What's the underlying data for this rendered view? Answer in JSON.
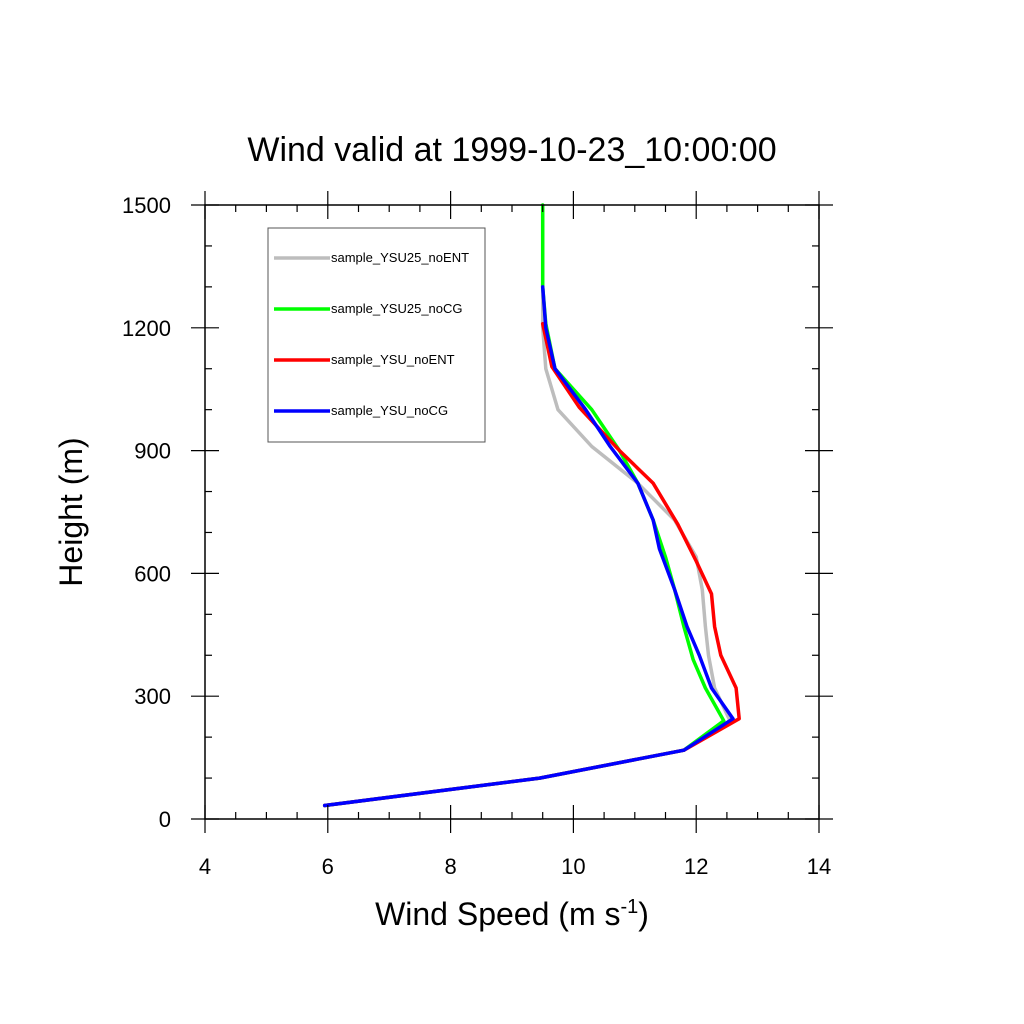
{
  "chart_data": {
    "type": "line",
    "title": "Wind valid at 1999-10-23_10:00:00",
    "xlabel": "Wind Speed (m s",
    "xlabel_superscript": "-1",
    "xlabel_suffix": ")",
    "ylabel": "Height (m)",
    "xlim": [
      4,
      14
    ],
    "ylim": [
      0,
      1500
    ],
    "xticks": [
      4,
      6,
      8,
      10,
      12,
      14
    ],
    "yticks": [
      0,
      300,
      600,
      900,
      1200,
      1500
    ],
    "xtick_labels": [
      "4",
      "6",
      "8",
      "10",
      "12",
      "14"
    ],
    "ytick_labels": [
      "0",
      "300",
      "600",
      "900",
      "1200",
      "1500"
    ],
    "legend_position": "top-left",
    "grid": false,
    "series": [
      {
        "name": "sample_YSU25_noENT",
        "color": "#bdbdbd",
        "x": [
          5.95,
          9.45,
          11.8,
          12.55,
          12.3,
          12.2,
          12.15,
          12.1,
          12.0,
          11.65,
          11.05,
          10.3,
          9.75,
          9.55,
          9.5,
          9.5,
          9.5
        ],
        "y": [
          33,
          100,
          168,
          240,
          320,
          400,
          470,
          560,
          640,
          730,
          820,
          910,
          1000,
          1100,
          1200,
          1300,
          1500
        ]
      },
      {
        "name": "sample_YSU25_noCG",
        "color": "#00ff00",
        "x": [
          5.95,
          9.45,
          11.8,
          12.45,
          12.15,
          11.95,
          11.8,
          11.65,
          11.5,
          11.3,
          11.05,
          10.75,
          10.3,
          9.7,
          9.55,
          9.5,
          9.5,
          9.5
        ],
        "y": [
          33,
          100,
          168,
          240,
          320,
          390,
          470,
          560,
          640,
          730,
          820,
          900,
          1000,
          1100,
          1210,
          1300,
          1400,
          1500
        ]
      },
      {
        "name": "sample_YSU_noENT",
        "color": "#ff0000",
        "x": [
          5.95,
          9.45,
          11.8,
          12.7,
          12.65,
          12.4,
          12.3,
          12.25,
          12.0,
          11.7,
          11.3,
          10.75,
          10.1,
          9.65,
          9.5
        ],
        "y": [
          33,
          100,
          168,
          245,
          320,
          400,
          470,
          550,
          630,
          720,
          820,
          900,
          1005,
          1105,
          1210
        ]
      },
      {
        "name": "sample_YSU_noCG",
        "color": "#0000ff",
        "x": [
          5.95,
          9.45,
          11.8,
          12.6,
          12.25,
          12.05,
          11.85,
          11.65,
          11.4,
          11.3,
          11.05,
          10.6,
          10.2,
          9.7,
          9.55,
          9.5
        ],
        "y": [
          33,
          100,
          168,
          245,
          320,
          400,
          470,
          560,
          660,
          730,
          820,
          910,
          1000,
          1100,
          1200,
          1300
        ]
      }
    ]
  }
}
